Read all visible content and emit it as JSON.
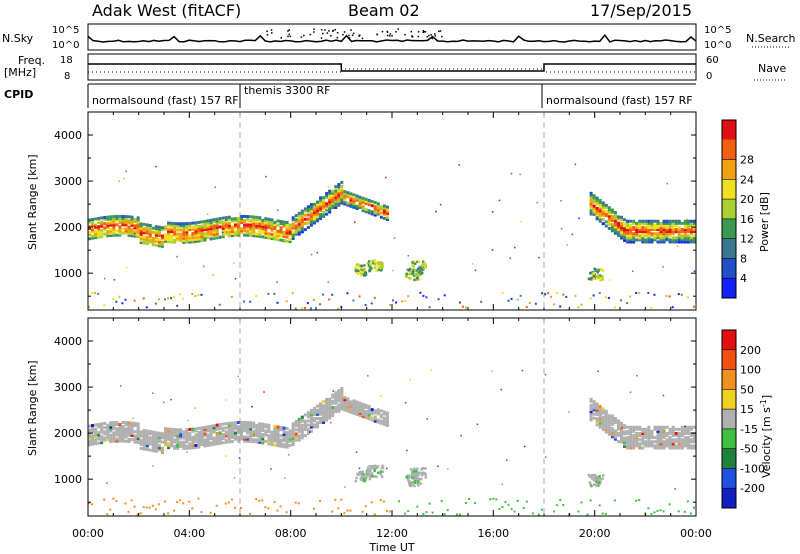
{
  "header": {
    "station": "Adak West (fitACF)",
    "beam": "Beam 02",
    "date": "17/Sep/2015"
  },
  "panels": {
    "nsky": {
      "left_label": "N.Sky",
      "right_label": "N.Search",
      "ticks": [
        "10^5",
        "10^0"
      ],
      "right_ticks": [
        "10^5",
        "10^0"
      ]
    },
    "freq": {
      "left_label_1": "Freq.",
      "left_label_2": "[MHz]",
      "right_label": "Nave",
      "ticks": [
        "18",
        "8"
      ],
      "right_ticks": [
        "60",
        "0"
      ]
    },
    "cpid": {
      "label": "CPID",
      "segments": [
        "normalsound (fast) 157 RF",
        "themis 3300 RF",
        "normalsound (fast) 157 RF"
      ]
    }
  },
  "chart_data": [
    {
      "type": "heatmap",
      "name_shown": "Power [dB]",
      "ylabel": "Slant Range [km]",
      "yticks": [
        1000,
        2000,
        3000,
        4000
      ],
      "ylim": [
        200,
        4500
      ],
      "xlim": [
        "00:00",
        "24:00"
      ],
      "colorbar": {
        "label": "Power [dB]",
        "ticks": [
          "4",
          "8",
          "12",
          "16",
          "20",
          "24",
          "28"
        ],
        "colors": [
          "#1020ff",
          "#2050c8",
          "#3a7890",
          "#3c9a50",
          "#a8d030",
          "#f0e020",
          "#f0a010",
          "#f06010",
          "#e01010"
        ]
      }
    },
    {
      "type": "heatmap",
      "name_shown": "Velocity [m s^-1]",
      "ylabel": "Slant Range [km]",
      "yticks": [
        1000,
        2000,
        3000,
        4000
      ],
      "ylim": [
        200,
        4500
      ],
      "xlim": [
        "00:00",
        "24:00"
      ],
      "colorbar": {
        "label": "Velocity [m s",
        "label_sup": "-1",
        "label_end": "]",
        "ticks": [
          "200",
          "100",
          "50",
          "15",
          "-15",
          "-50",
          "-100",
          "-200"
        ],
        "colors": [
          "#1020c0",
          "#2050e0",
          "#208040",
          "#40c040",
          "#b0b0b0",
          "#f0d020",
          "#f09020",
          "#f05010",
          "#e01010"
        ]
      }
    }
  ],
  "xaxis": {
    "ticks": [
      "00:00",
      "04:00",
      "08:00",
      "12:00",
      "16:00",
      "20:00",
      "00:00"
    ],
    "label": "Time UT"
  }
}
